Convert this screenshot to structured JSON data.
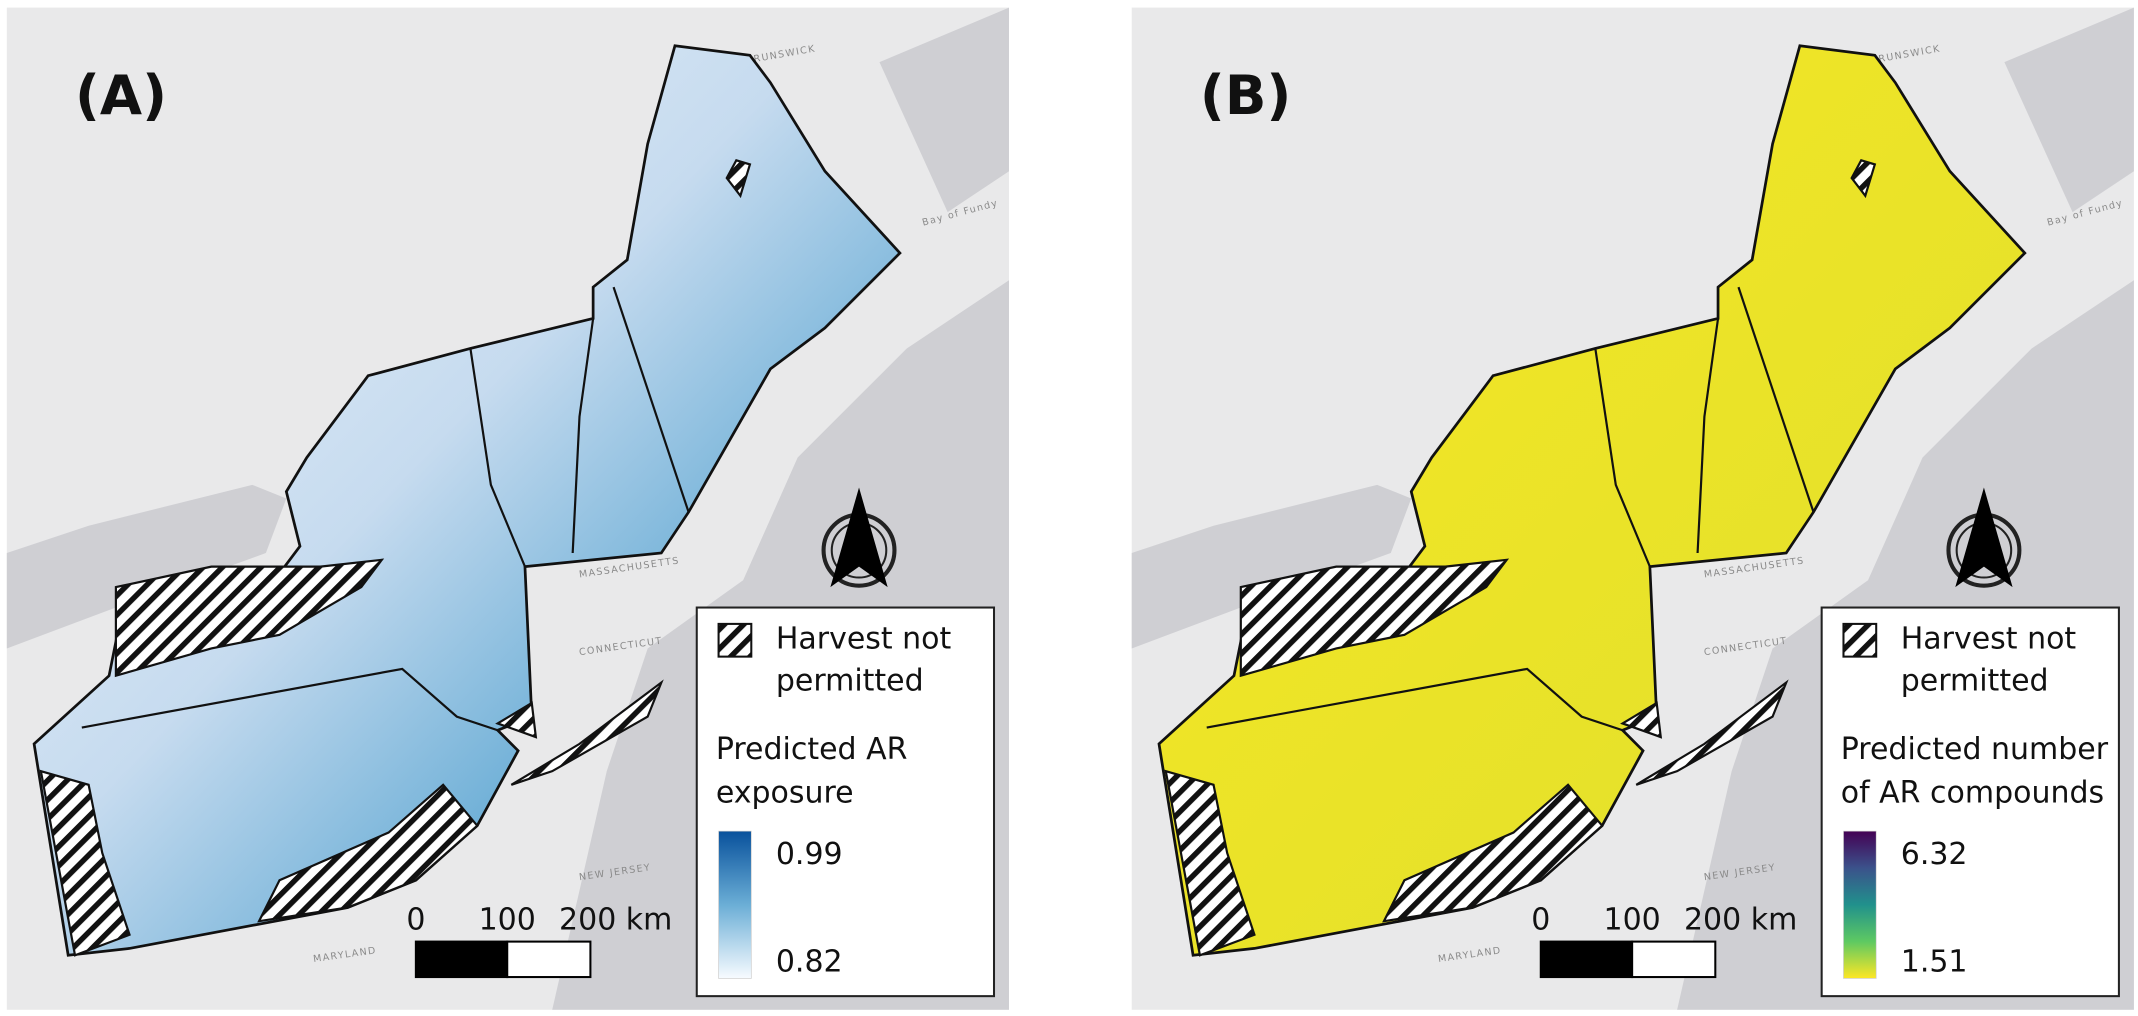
{
  "panels": [
    {
      "label": "(A)",
      "legend": {
        "hatch_label": [
          "Harvest not",
          "permitted"
        ],
        "colorbar_title": [
          "Predicted AR",
          "exposure"
        ],
        "colorbar_max": "0.99",
        "colorbar_min": "0.82"
      },
      "scale_bar": [
        "0",
        "100",
        "200 km"
      ]
    },
    {
      "label": "(B)",
      "legend": {
        "hatch_label": [
          "Harvest not",
          "permitted"
        ],
        "colorbar_title": [
          "Predicted number",
          "of AR compounds"
        ],
        "colorbar_max": "6.32",
        "colorbar_min": "1.51"
      },
      "scale_bar": [
        "0",
        "100",
        "200 km"
      ]
    }
  ],
  "map_labels": [
    "NEW BRUNSWICK",
    "Bay of Fundy",
    "MASSACHUSETTS",
    "CONNECTICUT",
    "NEW JERSEY",
    "MARYLAND"
  ]
}
